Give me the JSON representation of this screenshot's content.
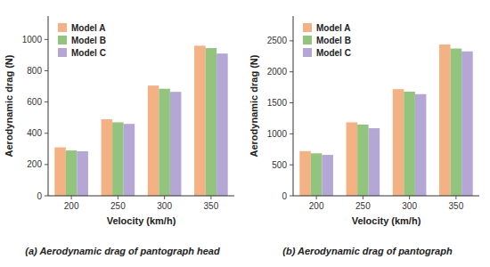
{
  "chart_data": [
    {
      "type": "bar",
      "title": "(a)  Aerodynamic drag of pantograph head",
      "x_label": "Velocity (km/h)",
      "y_label": "Aerodynamic drag (N)",
      "categories": [
        "200",
        "250",
        "300",
        "350"
      ],
      "series": [
        {
          "name": "Model A",
          "color": "#F4B183",
          "values": [
            310,
            490,
            705,
            960
          ]
        },
        {
          "name": "Model B",
          "color": "#93C47D",
          "values": [
            290,
            470,
            685,
            945
          ]
        },
        {
          "name": "Model C",
          "color": "#B4A7D6",
          "values": [
            285,
            460,
            665,
            910
          ]
        }
      ],
      "ylim": [
        0,
        1150
      ],
      "yticks": [
        0,
        200,
        400,
        600,
        800,
        1000
      ],
      "grid": false,
      "legend": "upper left"
    },
    {
      "type": "bar",
      "title": "(b)  Aerodynamic drag of pantograph",
      "x_label": "Velocity (km/h)",
      "y_label": "Aerodynamic drag (N)",
      "categories": [
        "200",
        "250",
        "300",
        "350"
      ],
      "series": [
        {
          "name": "Model A",
          "color": "#F4B183",
          "values": [
            720,
            1185,
            1720,
            2440
          ]
        },
        {
          "name": "Model B",
          "color": "#93C47D",
          "values": [
            685,
            1150,
            1680,
            2375
          ]
        },
        {
          "name": "Model C",
          "color": "#B4A7D6",
          "values": [
            660,
            1090,
            1640,
            2330
          ]
        }
      ],
      "ylim": [
        0,
        2900
      ],
      "yticks": [
        0,
        500,
        1000,
        1500,
        2000,
        2500
      ],
      "grid": false,
      "legend": "upper left"
    }
  ]
}
